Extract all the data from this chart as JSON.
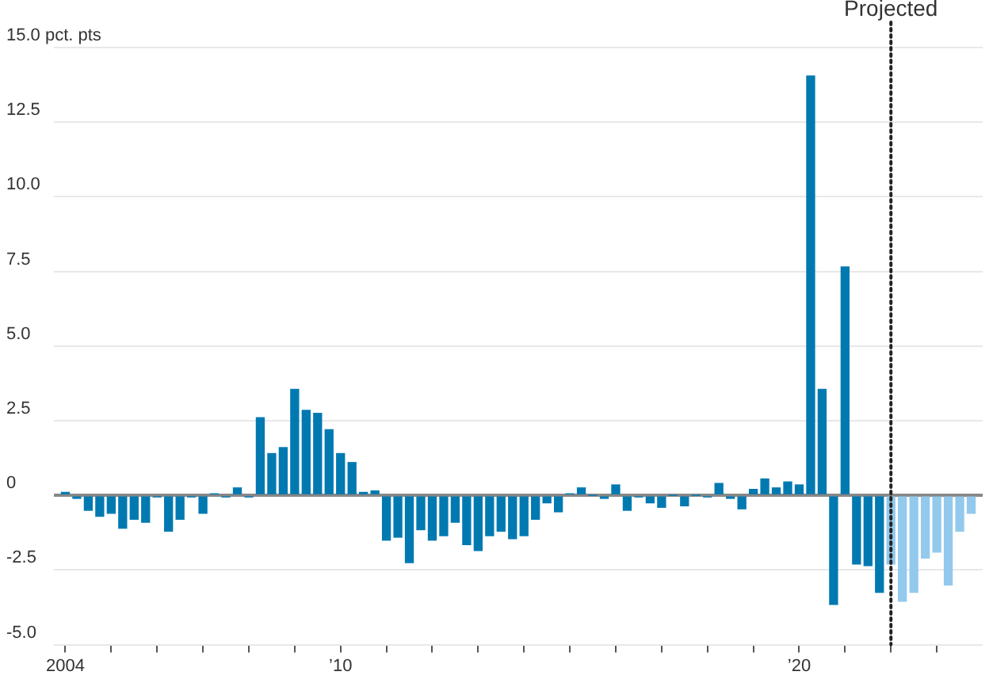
{
  "chart_data": {
    "type": "bar",
    "x": [
      2004,
      2004.25,
      2004.5,
      2004.75,
      2005,
      2005.25,
      2005.5,
      2005.75,
      2006,
      2006.25,
      2006.5,
      2006.75,
      2007,
      2007.25,
      2007.5,
      2007.75,
      2008,
      2008.25,
      2008.5,
      2008.75,
      2009,
      2009.25,
      2009.5,
      2009.75,
      2010,
      2010.25,
      2010.5,
      2010.75,
      2011,
      2011.25,
      2011.5,
      2011.75,
      2012,
      2012.25,
      2012.5,
      2012.75,
      2013,
      2013.25,
      2013.5,
      2013.75,
      2014,
      2014.25,
      2014.5,
      2014.75,
      2015,
      2015.25,
      2015.5,
      2015.75,
      2016,
      2016.25,
      2016.5,
      2016.75,
      2017,
      2017.25,
      2017.5,
      2017.75,
      2018,
      2018.25,
      2018.5,
      2018.75,
      2019,
      2019.25,
      2019.5,
      2019.75,
      2020,
      2020.25,
      2020.5,
      2020.75,
      2021,
      2021.25,
      2021.5,
      2021.75,
      2022,
      2022.25,
      2022.5,
      2022.75,
      2023,
      2023.25,
      2023.5,
      2023.75
    ],
    "values": [
      0.1,
      -0.1,
      -0.5,
      -0.7,
      -0.6,
      -1.1,
      -0.8,
      -0.9,
      -0.05,
      -1.2,
      -0.8,
      -0.05,
      -0.6,
      0.05,
      -0.05,
      0.25,
      -0.05,
      2.6,
      1.4,
      1.6,
      3.55,
      2.85,
      2.75,
      2.2,
      1.4,
      1.1,
      0.1,
      0.15,
      -1.5,
      -1.4,
      -2.25,
      -1.15,
      -1.5,
      -1.35,
      -0.9,
      -1.65,
      -1.85,
      -1.35,
      -1.2,
      -1.45,
      -1.35,
      -0.8,
      -0.25,
      -0.55,
      0.05,
      0.25,
      0,
      -0.1,
      0.35,
      -0.5,
      -0.05,
      -0.25,
      -0.4,
      0,
      -0.35,
      0,
      -0.05,
      0.4,
      -0.1,
      -0.45,
      0.2,
      0.55,
      0.25,
      0.45,
      0.35,
      14.05,
      3.55,
      -3.65,
      7.65,
      -2.3,
      -2.35,
      -3.25,
      -2.3,
      -3.55,
      -3.25,
      -2.1,
      -1.9,
      -3.0,
      -1.2,
      -0.6
    ],
    "colors": [
      "#0079b1",
      "#0079b1",
      "#0079b1",
      "#0079b1",
      "#0079b1",
      "#0079b1",
      "#0079b1",
      "#0079b1",
      "#0079b1",
      "#0079b1",
      "#0079b1",
      "#0079b1",
      "#0079b1",
      "#0079b1",
      "#0079b1",
      "#0079b1",
      "#0079b1",
      "#0079b1",
      "#0079b1",
      "#0079b1",
      "#0079b1",
      "#0079b1",
      "#0079b1",
      "#0079b1",
      "#0079b1",
      "#0079b1",
      "#0079b1",
      "#0079b1",
      "#0079b1",
      "#0079b1",
      "#0079b1",
      "#0079b1",
      "#0079b1",
      "#0079b1",
      "#0079b1",
      "#0079b1",
      "#0079b1",
      "#0079b1",
      "#0079b1",
      "#0079b1",
      "#0079b1",
      "#0079b1",
      "#0079b1",
      "#0079b1",
      "#0079b1",
      "#0079b1",
      "#0079b1",
      "#0079b1",
      "#0079b1",
      "#0079b1",
      "#0079b1",
      "#0079b1",
      "#0079b1",
      "#0079b1",
      "#0079b1",
      "#0079b1",
      "#0079b1",
      "#0079b1",
      "#0079b1",
      "#0079b1",
      "#0079b1",
      "#0079b1",
      "#0079b1",
      "#0079b1",
      "#0079b1",
      "#0079b1",
      "#0079b1",
      "#0079b1",
      "#0079b1",
      "#0079b1",
      "#0079b1",
      "#0079b1",
      "#93c9ec",
      "#93c9ec",
      "#93c9ec",
      "#93c9ec",
      "#93c9ec",
      "#93c9ec",
      "#93c9ec",
      "#93c9ec"
    ],
    "xlim": [
      2003.75,
      2024
    ],
    "xticks": [
      {
        "value": 2004,
        "label": "2004"
      },
      {
        "value": 2005,
        "label": null
      },
      {
        "value": 2006,
        "label": null
      },
      {
        "value": 2007,
        "label": null
      },
      {
        "value": 2008,
        "label": null
      },
      {
        "value": 2009,
        "label": null
      },
      {
        "value": 2010,
        "label": "’10"
      },
      {
        "value": 2011,
        "label": null
      },
      {
        "value": 2012,
        "label": null
      },
      {
        "value": 2013,
        "label": null
      },
      {
        "value": 2014,
        "label": null
      },
      {
        "value": 2015,
        "label": null
      },
      {
        "value": 2016,
        "label": null
      },
      {
        "value": 2017,
        "label": null
      },
      {
        "value": 2018,
        "label": null
      },
      {
        "value": 2019,
        "label": null
      },
      {
        "value": 2020,
        "label": "’20"
      },
      {
        "value": 2021,
        "label": null
      },
      {
        "value": 2022,
        "label": null
      },
      {
        "value": 2023,
        "label": null
      }
    ],
    "ylim": [
      -5,
      15
    ],
    "yticks": [
      {
        "value": -5,
        "label": "-5.0"
      },
      {
        "value": -2.5,
        "label": "-2.5"
      },
      {
        "value": 0,
        "label": "0"
      },
      {
        "value": 2.5,
        "label": "2.5"
      },
      {
        "value": 5,
        "label": "5.0"
      },
      {
        "value": 7.5,
        "label": "7.5"
      },
      {
        "value": 10,
        "label": "10.0"
      },
      {
        "value": 12.5,
        "label": "12.5"
      },
      {
        "value": 15,
        "label": "15.0 pct. pts"
      }
    ],
    "grid": "y",
    "ref_lines": [
      {
        "axis": "x",
        "value": 2022,
        "label": "Projected",
        "color": "#222222",
        "line_style": "dotted"
      }
    ]
  }
}
